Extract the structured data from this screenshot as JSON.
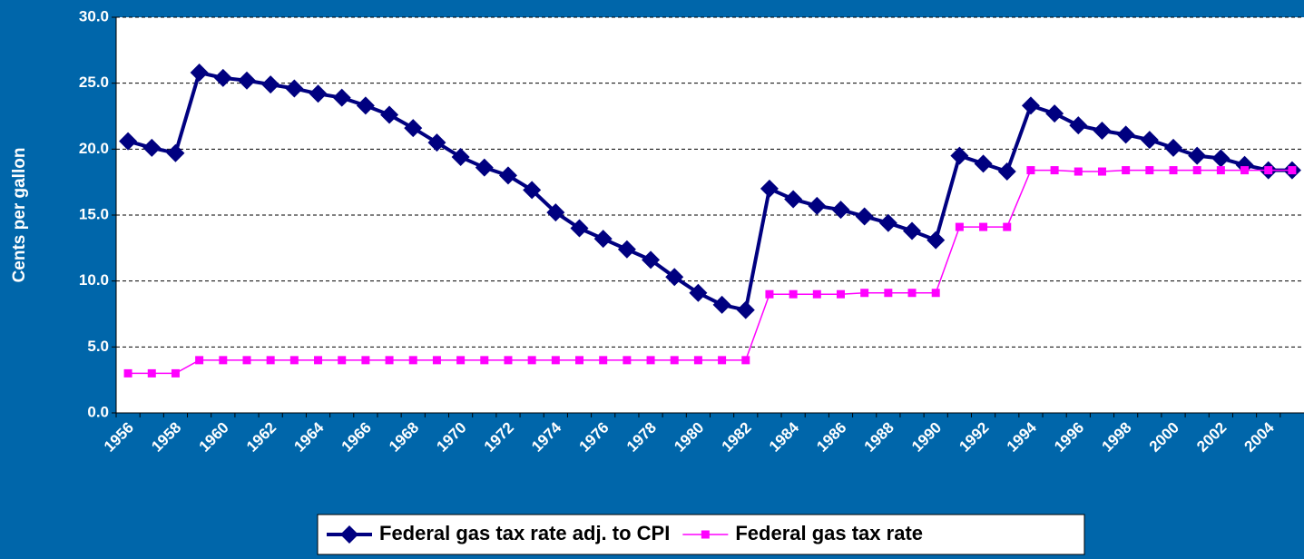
{
  "chart_data": {
    "type": "line",
    "y_label": "Cents per gallon",
    "categories": [
      "1956",
      null,
      "1958",
      null,
      "1960",
      null,
      "1962",
      null,
      "1964",
      null,
      "1966",
      null,
      "1968",
      null,
      "1970",
      null,
      "1972",
      null,
      "1974",
      null,
      "1976",
      null,
      "1978",
      null,
      "1980",
      null,
      "1982",
      null,
      "1984",
      null,
      "1986",
      null,
      "1988",
      null,
      "1990",
      null,
      "1992",
      null,
      "1994",
      null,
      "1996",
      null,
      "1998",
      null,
      "2000",
      null,
      "2002",
      null,
      "2004",
      null
    ],
    "series": [
      {
        "name": "Federal gas tax rate adj. to CPI",
        "color": "#000080",
        "marker": "diamond",
        "values": [
          20.6,
          20.1,
          19.7,
          25.8,
          25.4,
          25.2,
          24.9,
          24.6,
          24.2,
          23.9,
          23.3,
          22.6,
          21.6,
          20.5,
          19.4,
          18.6,
          18.0,
          16.9,
          15.2,
          14.0,
          13.2,
          12.4,
          11.6,
          10.3,
          9.1,
          8.2,
          7.8,
          17.0,
          16.2,
          15.7,
          15.4,
          14.9,
          14.4,
          13.8,
          13.1,
          19.5,
          18.9,
          18.3,
          23.3,
          22.7,
          21.8,
          21.4,
          21.1,
          20.7,
          20.1,
          19.5,
          19.3,
          18.8,
          18.4,
          18.4
        ]
      },
      {
        "name": "Federal gas tax rate",
        "color": "#ff00ff",
        "marker": "square",
        "values": [
          3,
          3,
          3,
          4,
          4,
          4,
          4,
          4,
          4,
          4,
          4,
          4,
          4,
          4,
          4,
          4,
          4,
          4,
          4,
          4,
          4,
          4,
          4,
          4,
          4,
          4,
          4,
          9,
          9,
          9,
          9,
          9.1,
          9.1,
          9.1,
          9.1,
          14.1,
          14.1,
          14.1,
          18.4,
          18.4,
          18.3,
          18.3,
          18.4,
          18.4,
          18.4,
          18.4,
          18.4,
          18.4,
          18.4,
          18.4
        ]
      }
    ],
    "ylim": [
      0,
      30
    ],
    "yticks": [
      {
        "value": 0,
        "label": "0.0"
      },
      {
        "value": 5,
        "label": "5.0"
      },
      {
        "value": 10,
        "label": "10.0"
      },
      {
        "value": 15,
        "label": "15.0"
      },
      {
        "value": 20,
        "label": "20.0"
      },
      {
        "value": 25,
        "label": "25.0"
      },
      {
        "value": 30,
        "label": "30.0"
      }
    ],
    "grid": true,
    "legend": "bottom"
  }
}
